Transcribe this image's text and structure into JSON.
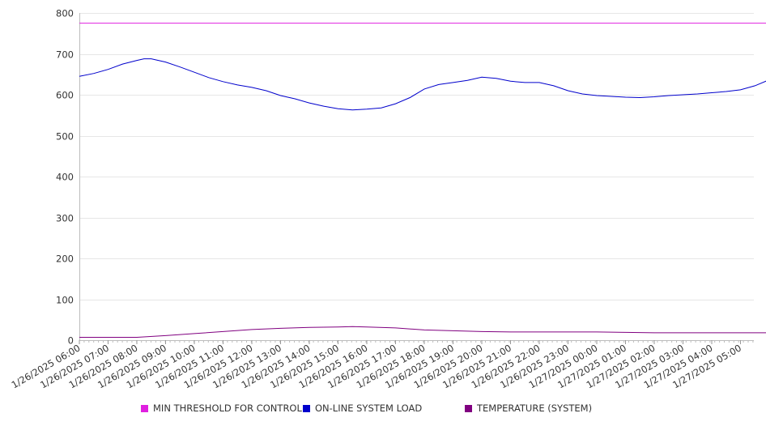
{
  "chart_data": {
    "type": "line",
    "title": "",
    "xlabel": "",
    "ylabel": "",
    "ylim": [
      0,
      800
    ],
    "y_ticks": [
      0,
      100,
      200,
      300,
      400,
      500,
      600,
      700,
      800
    ],
    "x_ticks": [
      "1/26/2025 06:00",
      "1/26/2025 07:00",
      "1/26/2025 08:00",
      "1/26/2025 09:00",
      "1/26/2025 10:00",
      "1/26/2025 11:00",
      "1/26/2025 12:00",
      "1/26/2025 13:00",
      "1/26/2025 14:00",
      "1/26/2025 15:00",
      "1/26/2025 16:00",
      "1/26/2025 17:00",
      "1/26/2025 18:00",
      "1/26/2025 19:00",
      "1/26/2025 20:00",
      "1/26/2025 21:00",
      "1/26/2025 22:00",
      "1/26/2025 23:00",
      "1/27/2025 00:00",
      "1/27/2025 01:00",
      "1/27/2025 02:00",
      "1/27/2025 03:00",
      "1/27/2025 04:00",
      "1/27/2025 05:00"
    ],
    "grid": true,
    "legend_position": "bottom",
    "series": [
      {
        "name": "MIN THRESHOLD FOR CONTROL",
        "color": "#e020e0",
        "x": [
          "1/26/2025 06:00",
          "1/27/2025 05:55"
        ],
        "y": [
          775,
          775
        ]
      },
      {
        "name": "ON-LINE SYSTEM LOAD",
        "color": "#0000cc",
        "x": [
          "1/26/2025 06:00",
          "1/26/2025 06:30",
          "1/26/2025 07:00",
          "1/26/2025 07:30",
          "1/26/2025 08:00",
          "1/26/2025 08:15",
          "1/26/2025 08:30",
          "1/26/2025 09:00",
          "1/26/2025 09:30",
          "1/26/2025 10:00",
          "1/26/2025 10:30",
          "1/26/2025 11:00",
          "1/26/2025 11:30",
          "1/26/2025 12:00",
          "1/26/2025 12:30",
          "1/26/2025 13:00",
          "1/26/2025 13:30",
          "1/26/2025 14:00",
          "1/26/2025 14:30",
          "1/26/2025 15:00",
          "1/26/2025 15:30",
          "1/26/2025 16:00",
          "1/26/2025 16:30",
          "1/26/2025 17:00",
          "1/26/2025 17:30",
          "1/26/2025 18:00",
          "1/26/2025 18:30",
          "1/26/2025 19:00",
          "1/26/2025 19:30",
          "1/26/2025 20:00",
          "1/26/2025 20:30",
          "1/26/2025 21:00",
          "1/26/2025 21:30",
          "1/26/2025 22:00",
          "1/26/2025 22:30",
          "1/26/2025 23:00",
          "1/26/2025 23:30",
          "1/27/2025 00:00",
          "1/27/2025 00:30",
          "1/27/2025 01:00",
          "1/27/2025 01:30",
          "1/27/2025 02:00",
          "1/27/2025 02:30",
          "1/27/2025 03:00",
          "1/27/2025 03:30",
          "1/27/2025 04:00",
          "1/27/2025 04:30",
          "1/27/2025 05:00",
          "1/27/2025 05:30",
          "1/27/2025 05:55"
        ],
        "y": [
          645,
          652,
          662,
          675,
          684,
          688,
          688,
          680,
          668,
          655,
          642,
          632,
          624,
          618,
          610,
          598,
          590,
          580,
          572,
          566,
          563,
          565,
          568,
          578,
          593,
          614,
          625,
          630,
          635,
          643,
          640,
          633,
          630,
          630,
          622,
          610,
          602,
          598,
          596,
          594,
          593,
          595,
          598,
          600,
          602,
          605,
          608,
          612,
          622,
          634
        ]
      },
      {
        "name": "TEMPERATURE (SYSTEM)",
        "color": "#800080",
        "x": [
          "1/26/2025 06:00",
          "1/26/2025 07:00",
          "1/26/2025 08:00",
          "1/26/2025 09:00",
          "1/26/2025 10:00",
          "1/26/2025 11:00",
          "1/26/2025 12:00",
          "1/26/2025 13:00",
          "1/26/2025 14:00",
          "1/26/2025 15:00",
          "1/26/2025 15:30",
          "1/26/2025 16:00",
          "1/26/2025 17:00",
          "1/26/2025 18:00",
          "1/26/2025 19:00",
          "1/26/2025 20:00",
          "1/26/2025 21:00",
          "1/26/2025 22:00",
          "1/26/2025 23:00",
          "1/27/2025 00:00",
          "1/27/2025 01:00",
          "1/27/2025 02:00",
          "1/27/2025 03:00",
          "1/27/2025 04:00",
          "1/27/2025 05:00",
          "1/27/2025 05:55"
        ],
        "y": [
          7,
          7,
          7,
          11,
          16,
          21,
          26,
          29,
          31,
          32,
          33,
          32,
          30,
          25,
          23,
          21,
          20,
          20,
          20,
          20,
          19,
          18,
          18,
          18,
          18,
          18
        ]
      }
    ]
  }
}
